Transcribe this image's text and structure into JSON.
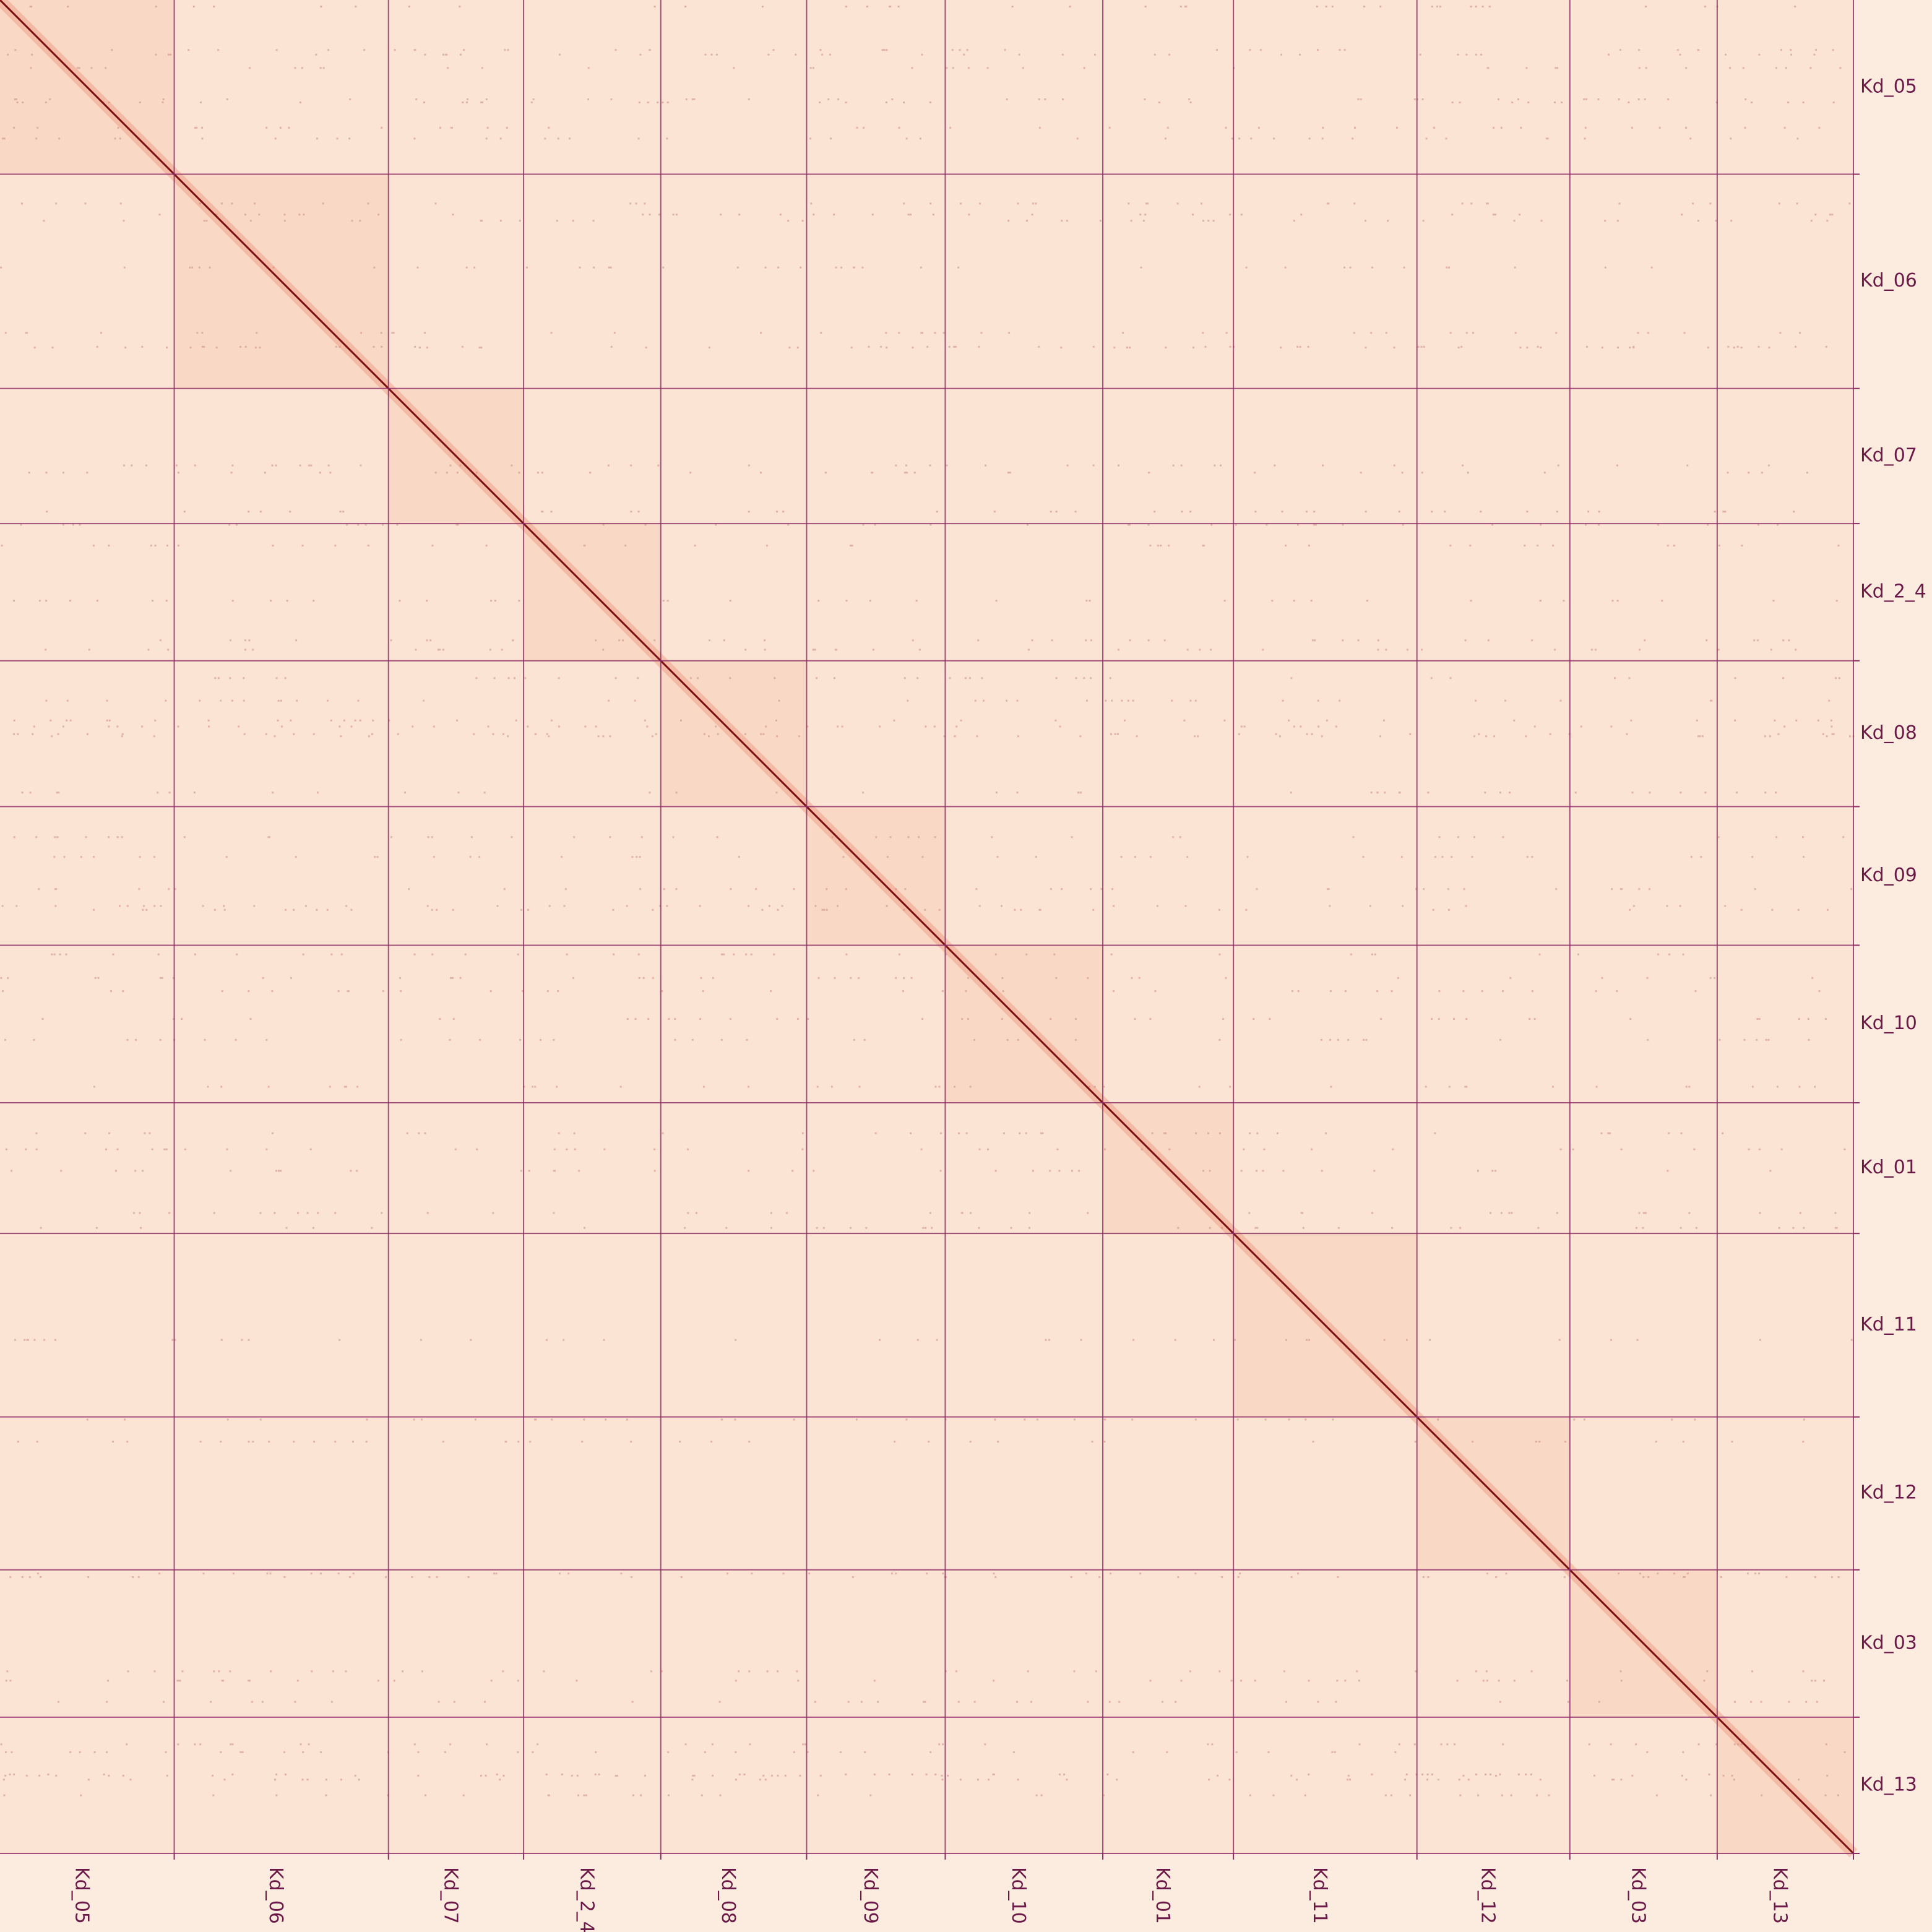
{
  "chart_data": {
    "type": "heatmap",
    "title": "",
    "xlabel": "",
    "ylabel": "",
    "colors": {
      "background": "#fcebdf",
      "low": "#fbe4d3",
      "mid": "#e8826a",
      "high": "#7a0f12",
      "boundary": "#8b2a62",
      "label": "#6b1a48"
    },
    "scaffolds": [
      {
        "name": "Kd_05",
        "start": 0,
        "end": 0.094
      },
      {
        "name": "Kd_06",
        "start": 0.094,
        "end": 0.2096
      },
      {
        "name": "Kd_07",
        "start": 0.2096,
        "end": 0.2825
      },
      {
        "name": "Kd_2_4",
        "start": 0.2825,
        "end": 0.3565
      },
      {
        "name": "Kd_08",
        "start": 0.3565,
        "end": 0.4352
      },
      {
        "name": "Kd_09",
        "start": 0.4352,
        "end": 0.51
      },
      {
        "name": "Kd_10",
        "start": 0.51,
        "end": 0.595
      },
      {
        "name": "Kd_01",
        "start": 0.595,
        "end": 0.6655
      },
      {
        "name": "Kd_11",
        "start": 0.6655,
        "end": 0.7645
      },
      {
        "name": "Kd_12",
        "start": 0.7645,
        "end": 0.847
      },
      {
        "name": "Kd_03",
        "start": 0.847,
        "end": 0.9265
      },
      {
        "name": "Kd_13",
        "start": 0.9265,
        "end": 1.0
      }
    ]
  }
}
